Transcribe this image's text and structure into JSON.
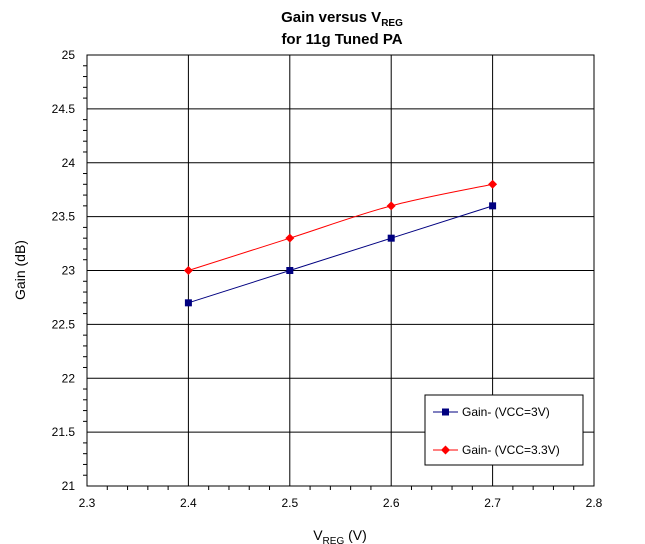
{
  "chart_data": {
    "type": "line",
    "title": {
      "line1_main": "Gain versus V",
      "line1_sub": "REG",
      "line2": "for 11g Tuned PA"
    },
    "xlabel": {
      "main": "V",
      "sub": "REG",
      "suffix": " (V)"
    },
    "ylabel": "Gain (dB)",
    "xlim": [
      2.3,
      2.8
    ],
    "ylim": [
      21,
      25
    ],
    "x_ticks": [
      "2.3",
      "2.4",
      "2.5",
      "2.6",
      "2.7",
      "2.8"
    ],
    "y_ticks": [
      "21",
      "21.5",
      "22",
      "22.5",
      "23",
      "23.5",
      "24",
      "24.5",
      "25"
    ],
    "grid": true,
    "legend_position": "bottom-right",
    "series": [
      {
        "name": "Gain- (VCC=3V)",
        "color": "#000080",
        "marker": "square",
        "x": [
          2.4,
          2.5,
          2.6,
          2.7
        ],
        "y": [
          22.7,
          23.0,
          23.3,
          23.6
        ]
      },
      {
        "name": "Gain- (VCC=3.3V)",
        "color": "#ff0000",
        "marker": "diamond",
        "x": [
          2.4,
          2.5,
          2.6,
          2.7
        ],
        "y": [
          23.0,
          23.3,
          23.6,
          23.8
        ]
      }
    ]
  }
}
